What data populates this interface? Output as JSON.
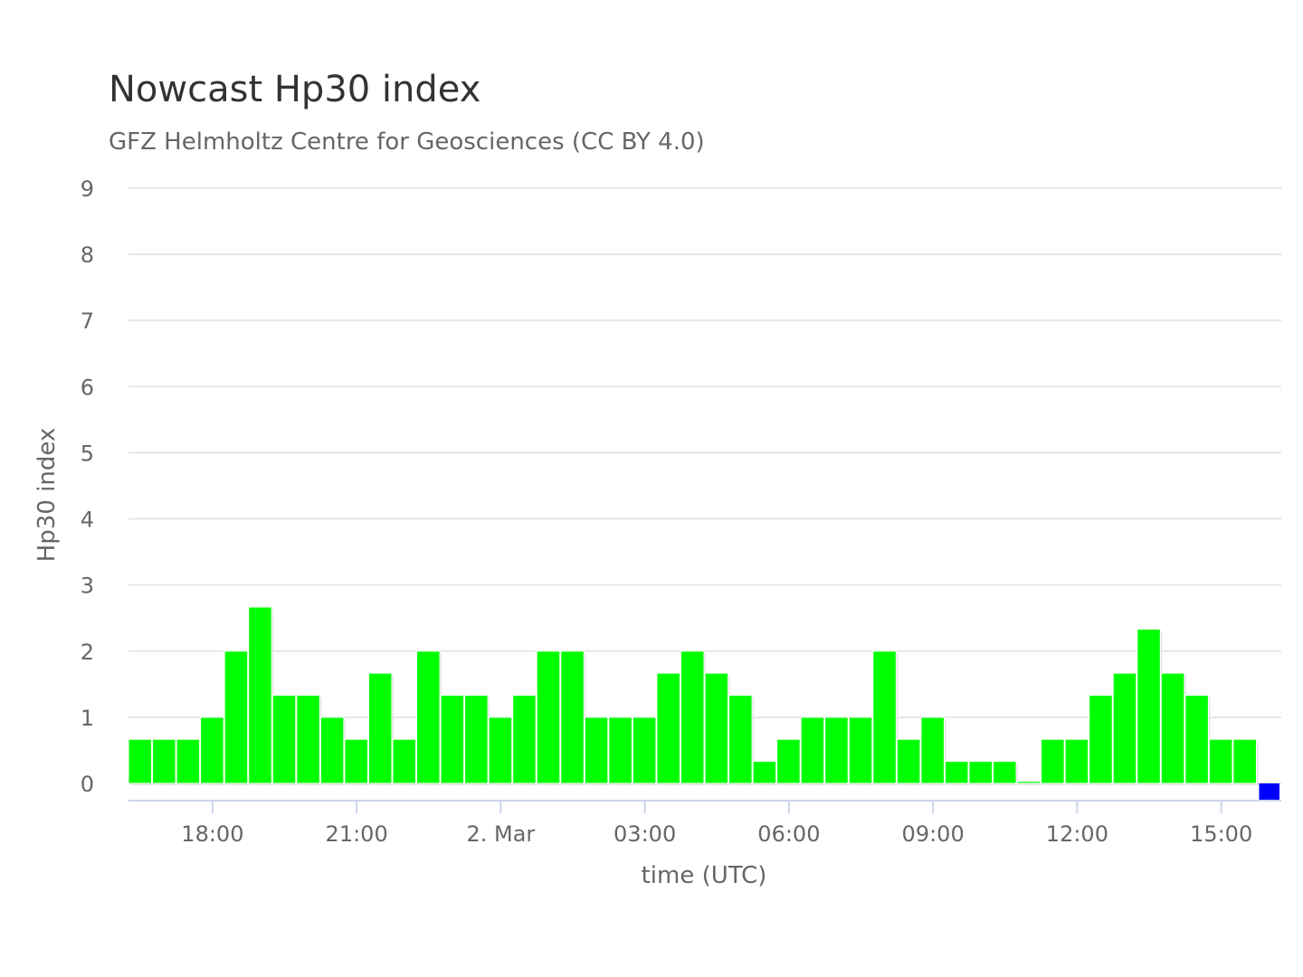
{
  "chart_data": {
    "type": "bar",
    "title": "Nowcast Hp30 index",
    "subtitle": "GFZ Helmholtz Centre for Geosciences (CC BY 4.0)",
    "xlabel": "time (UTC)",
    "ylabel": "Hp30 index",
    "ylim": [
      0,
      9
    ],
    "yticks": [
      "0",
      "1",
      "2",
      "3",
      "4",
      "5",
      "6",
      "7",
      "8",
      "9"
    ],
    "grid": true,
    "start_time": "1 Mar 16:30",
    "bin_hours": 0.5,
    "x_range_hours": [
      -0.25,
      23.75
    ],
    "xticks": [
      {
        "label": "18:00",
        "hours": 1.5
      },
      {
        "label": "21:00",
        "hours": 4.5
      },
      {
        "label": "2. Mar",
        "hours": 7.5
      },
      {
        "label": "03:00",
        "hours": 10.5
      },
      {
        "label": "06:00",
        "hours": 13.5
      },
      {
        "label": "09:00",
        "hours": 16.5
      },
      {
        "label": "12:00",
        "hours": 19.5
      },
      {
        "label": "15:00",
        "hours": 22.5
      }
    ],
    "series": [
      {
        "color": "#00ff00",
        "values": [
          0.667,
          0.667,
          0.667,
          1.0,
          2.0,
          2.667,
          1.333,
          1.333,
          1.0,
          0.667,
          1.667,
          0.667,
          2.0,
          1.333,
          1.333,
          1.0,
          1.333,
          2.0,
          2.0,
          1.0,
          1.0,
          1.0,
          1.667,
          2.0,
          1.667,
          1.333,
          0.333,
          0.667,
          1.0,
          1.0,
          1.0,
          2.0,
          0.667,
          1.0,
          0.333,
          0.333,
          0.333,
          0.0,
          0.667,
          0.667,
          1.333,
          1.667,
          2.333,
          1.667,
          1.333,
          0.667,
          0.667
        ]
      }
    ],
    "current_bin": {
      "color": "#0000ff",
      "value": 0
    }
  }
}
